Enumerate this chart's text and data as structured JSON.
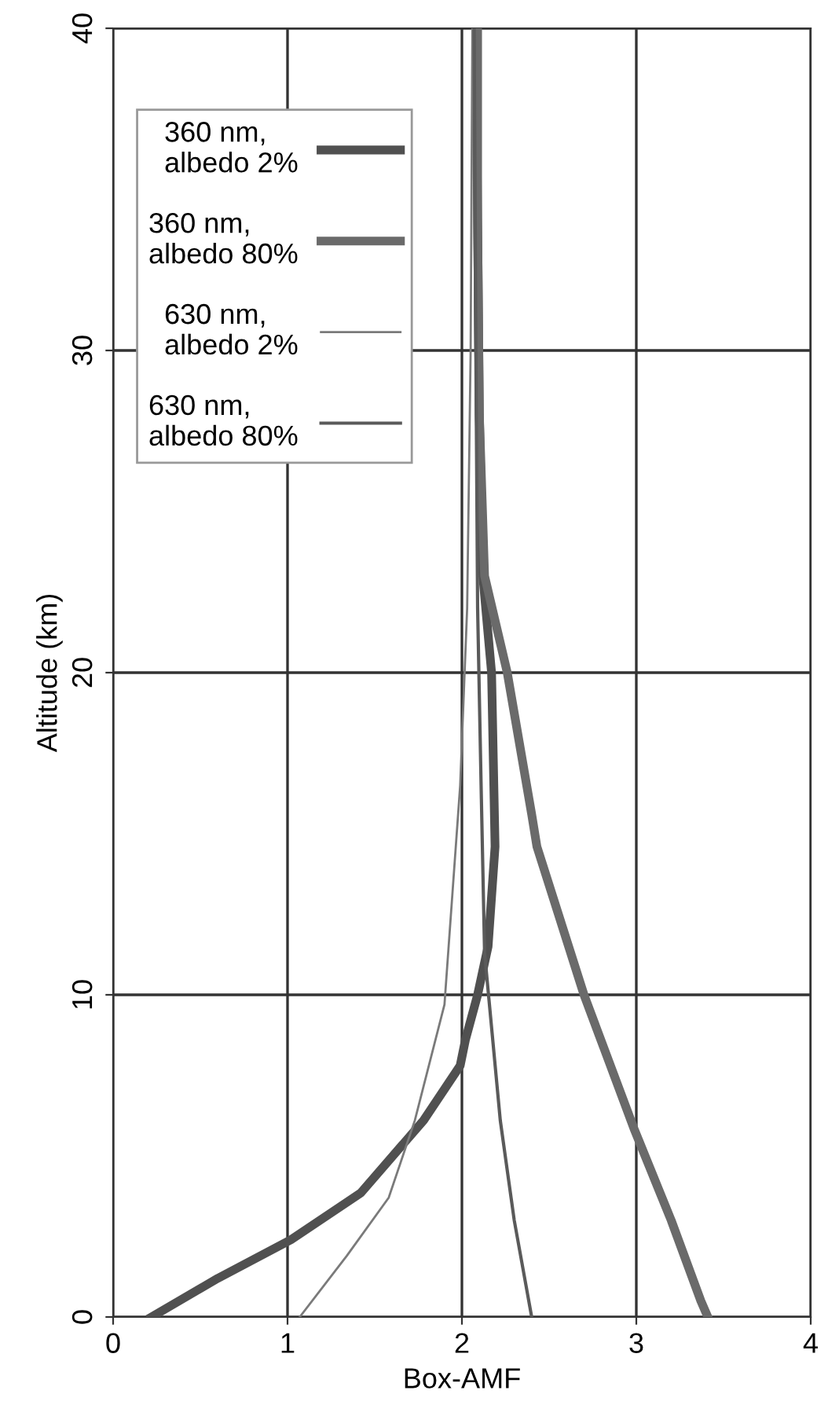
{
  "chart_data": {
    "type": "line",
    "xlabel": "Box-AMF",
    "ylabel": "Altitude (km)",
    "xlim": [
      0,
      4
    ],
    "ylim": [
      0,
      40
    ],
    "xticks": [
      0,
      1,
      2,
      3,
      4
    ],
    "yticks": [
      0,
      10,
      20,
      30,
      40
    ],
    "grid": true,
    "legend": "top left",
    "marker": "none",
    "line_style": "solid",
    "series": [
      {
        "name": "360 nm,\nalbedo 2%",
        "color": "#505050",
        "x": [
          0.22,
          0.6,
          1.02,
          1.42,
          1.78,
          1.99,
          2.02,
          2.09,
          2.15,
          2.19,
          2.17,
          2.12,
          2.1,
          2.09,
          2.08
        ],
        "values": [
          0,
          1.2,
          2.4,
          3.85,
          6.1,
          7.8,
          8.6,
          10,
          11.5,
          14.6,
          20,
          23,
          28,
          34,
          40
        ]
      },
      {
        "name": "360 nm,\nalbedo 80%",
        "color": "#6a6a6a",
        "x": [
          3.41,
          3.37,
          3.2,
          2.99,
          2.7,
          2.43,
          2.4,
          2.26,
          2.13,
          2.1,
          2.09,
          2.09
        ],
        "values": [
          0,
          0.5,
          3,
          5.8,
          10,
          14.6,
          15.6,
          20,
          23,
          28,
          34,
          40
        ]
      },
      {
        "name": "630 nm,\nalbedo 2%",
        "color": "#7a7a7a",
        "x": [
          1.07,
          1.34,
          1.58,
          1.73,
          1.9,
          1.99,
          2.03,
          2.05,
          2.06
        ],
        "values": [
          0,
          1.9,
          3.7,
          6.1,
          9.7,
          16.5,
          22,
          30,
          40
        ]
      },
      {
        "name": "630 nm,\nalbedo 80%",
        "color": "#5a5a5a",
        "x": [
          2.4,
          2.3,
          2.22,
          2.13,
          2.11,
          2.09,
          2.08,
          2.07
        ],
        "values": [
          0,
          3,
          6.1,
          11.3,
          16.5,
          22,
          30,
          40
        ]
      }
    ]
  }
}
